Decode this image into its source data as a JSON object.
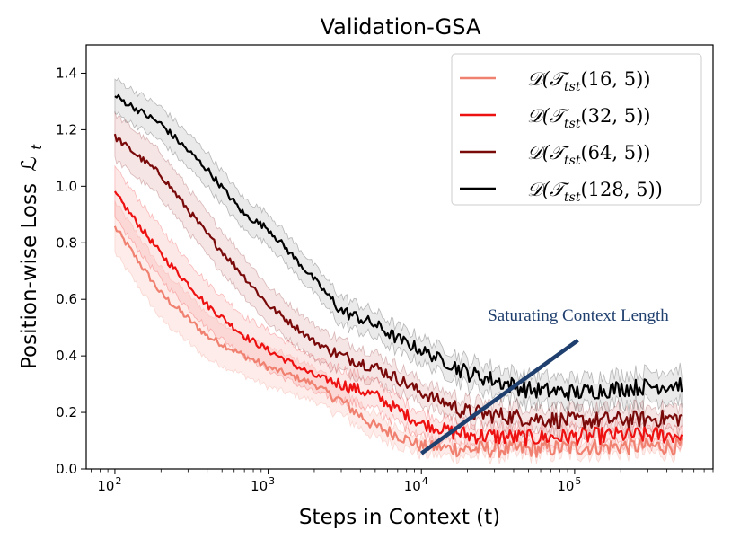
{
  "chart_data": {
    "type": "line",
    "title": "Validation-GSA",
    "xlabel": "Steps in Context (t)",
    "ylabel": "Position-wise Loss",
    "ylabel_symbol": "ℒ",
    "ylabel_subscript": "t",
    "xscale": "log",
    "xlim": [
      65,
      800000
    ],
    "ylim": [
      0,
      1.5
    ],
    "x_ticks": [
      {
        "value": 100,
        "base": "10",
        "exp": "2"
      },
      {
        "value": 1000,
        "base": "10",
        "exp": "3"
      },
      {
        "value": 10000,
        "base": "10",
        "exp": "4"
      },
      {
        "value": 100000,
        "base": "10",
        "exp": "5"
      }
    ],
    "y_ticks": [
      {
        "value": 0.0,
        "label": "0.0"
      },
      {
        "value": 0.2,
        "label": "0.2"
      },
      {
        "value": 0.4,
        "label": "0.4"
      },
      {
        "value": 0.6,
        "label": "0.6"
      },
      {
        "value": 0.8,
        "label": "0.8"
      },
      {
        "value": 1.0,
        "label": "1.0"
      },
      {
        "value": 1.2,
        "label": "1.2"
      },
      {
        "value": 1.4,
        "label": "1.4"
      }
    ],
    "grid": false,
    "legend_position": "top-right",
    "series": [
      {
        "name_prefix": "𝒟(𝒯",
        "name_sub": "tst",
        "name_suffix": "(16, 5))",
        "color": "#f08070",
        "x": [
          100,
          200,
          400,
          700,
          1000,
          2000,
          3000,
          5000,
          7000,
          10000,
          20000,
          50000,
          100000,
          200000,
          500000
        ],
        "y": [
          0.855,
          0.62,
          0.47,
          0.4,
          0.36,
          0.3,
          0.24,
          0.15,
          0.12,
          0.08,
          0.07,
          0.07,
          0.075,
          0.08,
          0.08
        ],
        "band": [
          0.09,
          0.09,
          0.08,
          0.07,
          0.07,
          0.06,
          0.05,
          0.04,
          0.035,
          0.03,
          0.025,
          0.025,
          0.025,
          0.025,
          0.025
        ]
      },
      {
        "name_prefix": "𝒟(𝒯",
        "name_sub": "tst",
        "name_suffix": "(32, 5))",
        "color": "#ee1111",
        "x": [
          100,
          200,
          400,
          700,
          1000,
          2000,
          3000,
          5000,
          7000,
          10000,
          20000,
          50000,
          100000,
          200000,
          500000
        ],
        "y": [
          0.975,
          0.76,
          0.58,
          0.47,
          0.42,
          0.33,
          0.3,
          0.26,
          0.21,
          0.16,
          0.12,
          0.11,
          0.115,
          0.12,
          0.12
        ],
        "band": [
          0.09,
          0.09,
          0.08,
          0.07,
          0.07,
          0.06,
          0.055,
          0.05,
          0.045,
          0.04,
          0.035,
          0.035,
          0.035,
          0.035,
          0.035
        ]
      },
      {
        "name_prefix": "𝒟(𝒯",
        "name_sub": "tst",
        "name_suffix": "(64, 5))",
        "color": "#7a0a0a",
        "x": [
          100,
          200,
          400,
          700,
          1000,
          2000,
          3000,
          5000,
          7000,
          10000,
          20000,
          50000,
          100000,
          200000,
          500000
        ],
        "y": [
          1.175,
          1.04,
          0.83,
          0.68,
          0.58,
          0.45,
          0.4,
          0.36,
          0.32,
          0.27,
          0.2,
          0.18,
          0.17,
          0.175,
          0.18
        ],
        "band": [
          0.08,
          0.08,
          0.075,
          0.07,
          0.065,
          0.06,
          0.055,
          0.05,
          0.045,
          0.04,
          0.04,
          0.04,
          0.04,
          0.04,
          0.04
        ]
      },
      {
        "name_prefix": "𝒟(𝒯",
        "name_sub": "tst",
        "name_suffix": "(128, 5))",
        "color": "#000000",
        "x": [
          100,
          200,
          400,
          700,
          1000,
          2000,
          3000,
          5000,
          7000,
          10000,
          20000,
          50000,
          100000,
          200000,
          500000
        ],
        "y": [
          1.32,
          1.22,
          1.06,
          0.9,
          0.85,
          0.67,
          0.56,
          0.51,
          0.46,
          0.42,
          0.34,
          0.28,
          0.27,
          0.285,
          0.3
        ],
        "band": [
          0.06,
          0.06,
          0.06,
          0.055,
          0.055,
          0.05,
          0.05,
          0.045,
          0.045,
          0.045,
          0.045,
          0.05,
          0.05,
          0.05,
          0.055
        ]
      }
    ],
    "annotation": {
      "text": "Saturating Context Length",
      "color": "#1f3f6e",
      "line_from": [
        10000,
        0.055
      ],
      "line_to": [
        105000,
        0.455
      ]
    }
  }
}
